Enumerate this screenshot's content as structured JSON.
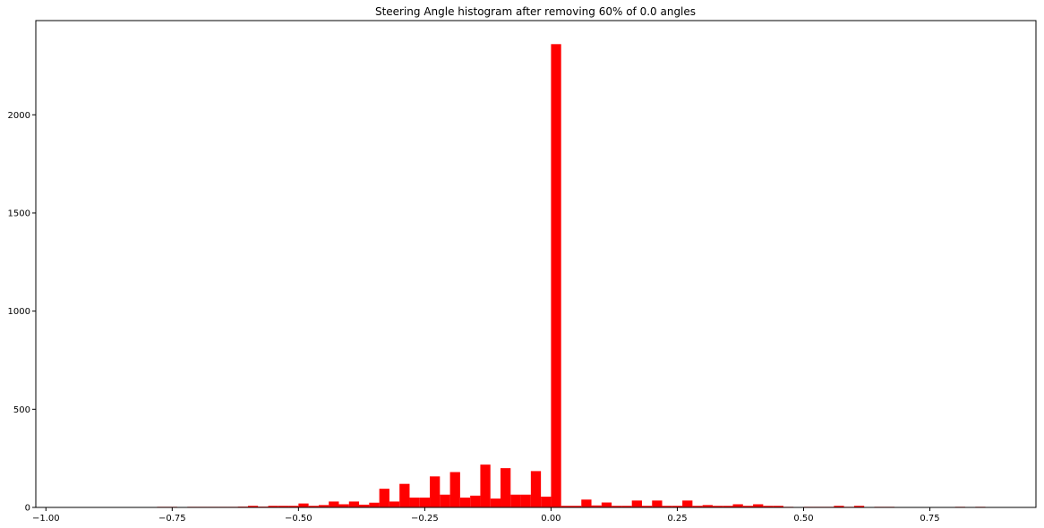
{
  "chart_data": {
    "type": "bar",
    "title": "Steering Angle histogram after removing 60% of 0.0 angles",
    "xlabel": "",
    "ylabel": "",
    "xlim": [
      -1.02,
      0.96
    ],
    "ylim": [
      0,
      2480
    ],
    "grid": false,
    "bar_color": "#ff0000",
    "bin_width": 0.02,
    "x_ticks": [
      -1.0,
      -0.75,
      -0.5,
      -0.25,
      0.0,
      0.25,
      0.5,
      0.75
    ],
    "x_tick_labels": [
      "−1.00",
      "−0.75",
      "−0.50",
      "−0.25",
      "0.00",
      "0.25",
      "0.50",
      "0.75"
    ],
    "y_ticks": [
      0,
      500,
      1000,
      1500,
      2000
    ],
    "y_tick_labels": [
      "0",
      "500",
      "1000",
      "1500",
      "2000"
    ],
    "bins": [
      {
        "x": -0.78,
        "y": 3
      },
      {
        "x": -0.76,
        "y": 3
      },
      {
        "x": -0.72,
        "y": 3
      },
      {
        "x": -0.7,
        "y": 3
      },
      {
        "x": -0.68,
        "y": 3
      },
      {
        "x": -0.66,
        "y": 3
      },
      {
        "x": -0.64,
        "y": 3
      },
      {
        "x": -0.62,
        "y": 4
      },
      {
        "x": -0.6,
        "y": 8
      },
      {
        "x": -0.58,
        "y": 4
      },
      {
        "x": -0.56,
        "y": 8
      },
      {
        "x": -0.54,
        "y": 8
      },
      {
        "x": -0.52,
        "y": 8
      },
      {
        "x": -0.5,
        "y": 20
      },
      {
        "x": -0.48,
        "y": 8
      },
      {
        "x": -0.46,
        "y": 12
      },
      {
        "x": -0.44,
        "y": 30
      },
      {
        "x": -0.42,
        "y": 16
      },
      {
        "x": -0.4,
        "y": 30
      },
      {
        "x": -0.38,
        "y": 14
      },
      {
        "x": -0.36,
        "y": 24
      },
      {
        "x": -0.34,
        "y": 95
      },
      {
        "x": -0.32,
        "y": 30
      },
      {
        "x": -0.3,
        "y": 120
      },
      {
        "x": -0.28,
        "y": 50
      },
      {
        "x": -0.26,
        "y": 50
      },
      {
        "x": -0.24,
        "y": 158
      },
      {
        "x": -0.22,
        "y": 65
      },
      {
        "x": -0.2,
        "y": 180
      },
      {
        "x": -0.18,
        "y": 50
      },
      {
        "x": -0.16,
        "y": 60
      },
      {
        "x": -0.14,
        "y": 218
      },
      {
        "x": -0.12,
        "y": 45
      },
      {
        "x": -0.1,
        "y": 200
      },
      {
        "x": -0.08,
        "y": 65
      },
      {
        "x": -0.06,
        "y": 65
      },
      {
        "x": -0.04,
        "y": 185
      },
      {
        "x": -0.02,
        "y": 55
      },
      {
        "x": 0.0,
        "y": 2360
      },
      {
        "x": 0.02,
        "y": 8
      },
      {
        "x": 0.04,
        "y": 8
      },
      {
        "x": 0.06,
        "y": 40
      },
      {
        "x": 0.08,
        "y": 10
      },
      {
        "x": 0.1,
        "y": 25
      },
      {
        "x": 0.12,
        "y": 8
      },
      {
        "x": 0.14,
        "y": 8
      },
      {
        "x": 0.16,
        "y": 35
      },
      {
        "x": 0.18,
        "y": 8
      },
      {
        "x": 0.2,
        "y": 35
      },
      {
        "x": 0.22,
        "y": 8
      },
      {
        "x": 0.24,
        "y": 8
      },
      {
        "x": 0.26,
        "y": 35
      },
      {
        "x": 0.28,
        "y": 8
      },
      {
        "x": 0.3,
        "y": 12
      },
      {
        "x": 0.32,
        "y": 8
      },
      {
        "x": 0.34,
        "y": 8
      },
      {
        "x": 0.36,
        "y": 16
      },
      {
        "x": 0.38,
        "y": 8
      },
      {
        "x": 0.4,
        "y": 16
      },
      {
        "x": 0.42,
        "y": 8
      },
      {
        "x": 0.44,
        "y": 8
      },
      {
        "x": 0.46,
        "y": 3
      },
      {
        "x": 0.5,
        "y": 3
      },
      {
        "x": 0.52,
        "y": 3
      },
      {
        "x": 0.54,
        "y": 3
      },
      {
        "x": 0.56,
        "y": 8
      },
      {
        "x": 0.58,
        "y": 3
      },
      {
        "x": 0.6,
        "y": 8
      },
      {
        "x": 0.64,
        "y": 3
      },
      {
        "x": 0.66,
        "y": 3
      },
      {
        "x": 0.8,
        "y": 3
      },
      {
        "x": 0.84,
        "y": 3
      }
    ]
  }
}
